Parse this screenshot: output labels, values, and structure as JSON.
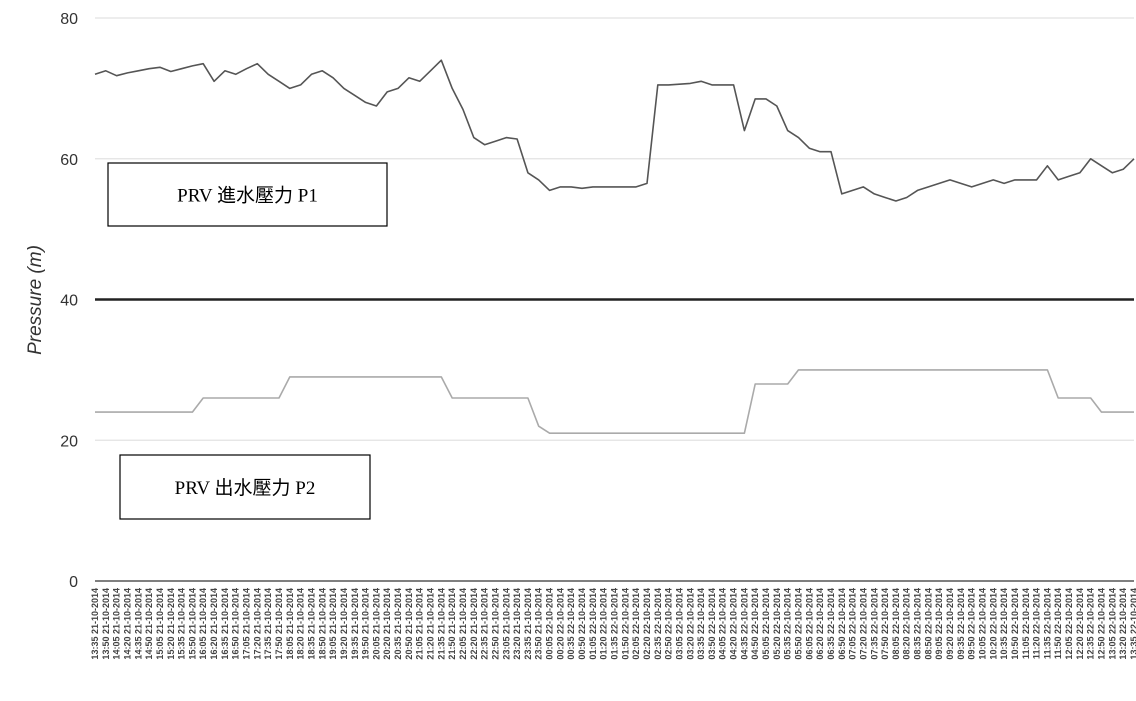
{
  "chart_data": {
    "type": "line",
    "title": "",
    "xlabel": "",
    "ylabel": "Pressure (m)",
    "ylim": [
      0,
      80
    ],
    "yticks": [
      0,
      20,
      40,
      60,
      80
    ],
    "grid": true,
    "reference_line": 40,
    "x": [
      "13:35 21-10-2014",
      "13:50 21-10-2014",
      "14:05 21-10-2014",
      "14:20 21-10-2014",
      "14:35 21-10-2014",
      "14:50 21-10-2014",
      "15:05 21-10-2014",
      "15:20 21-10-2014",
      "15:35 21-10-2014",
      "15:50 21-10-2014",
      "16:05 21-10-2014",
      "16:20 21-10-2014",
      "16:35 21-10-2014",
      "16:50 21-10-2014",
      "17:05 21-10-2014",
      "17:20 21-10-2014",
      "17:35 21-10-2014",
      "17:50 21-10-2014",
      "18:05 21-10-2014",
      "18:20 21-10-2014",
      "18:35 21-10-2014",
      "18:50 21-10-2014",
      "19:05 21-10-2014",
      "19:20 21-10-2014",
      "19:35 21-10-2014",
      "19:50 21-10-2014",
      "20:05 21-10-2014",
      "20:20 21-10-2014",
      "20:35 21-10-2014",
      "20:50 21-10-2014",
      "21:05 21-10-2014",
      "21:20 21-10-2014",
      "21:35 21-10-2014",
      "21:50 21-10-2014",
      "22:05 21-10-2014",
      "22:20 21-10-2014",
      "22:35 21-10-2014",
      "22:50 21-10-2014",
      "23:05 21-10-2014",
      "23:20 21-10-2014",
      "23:35 21-10-2014",
      "23:50 21-10-2014",
      "00:05 22-10-2014",
      "00:20 22-10-2014",
      "00:35 22-10-2014",
      "00:50 22-10-2014",
      "01:05 22-10-2014",
      "01:20 22-10-2014",
      "01:35 22-10-2014",
      "01:50 22-10-2014",
      "02:05 22-10-2014",
      "02:20 22-10-2014",
      "02:35 22-10-2014",
      "02:50 22-10-2014",
      "03:05 22-10-2014",
      "03:20 22-10-2014",
      "03:35 22-10-2014",
      "03:50 22-10-2014",
      "04:05 22-10-2014",
      "04:20 22-10-2014",
      "04:35 22-10-2014",
      "04:50 22-10-2014",
      "05:05 22-10-2014",
      "05:20 22-10-2014",
      "05:35 22-10-2014",
      "05:50 22-10-2014",
      "06:05 22-10-2014",
      "06:20 22-10-2014",
      "06:35 22-10-2014",
      "06:50 22-10-2014",
      "07:05 22-10-2014",
      "07:20 22-10-2014",
      "07:35 22-10-2014",
      "07:50 22-10-2014",
      "08:05 22-10-2014",
      "08:20 22-10-2014",
      "08:35 22-10-2014",
      "08:50 22-10-2014",
      "09:05 22-10-2014",
      "09:20 22-10-2014",
      "09:35 22-10-2014",
      "09:50 22-10-2014",
      "10:05 22-10-2014",
      "10:20 22-10-2014",
      "10:35 22-10-2014",
      "10:50 22-10-2014",
      "11:05 22-10-2014",
      "11:20 22-10-2014",
      "11:35 22-10-2014",
      "11:50 22-10-2014",
      "12:05 22-10-2014",
      "12:20 22-10-2014",
      "12:35 22-10-2014",
      "12:50 22-10-2014",
      "13:05 22-10-2014",
      "13:20 22-10-2014",
      "13:35 22-10-2014"
    ],
    "series": [
      {
        "name": "P1",
        "color": "#555555",
        "values": [
          72,
          72.5,
          71.8,
          72.2,
          72.5,
          72.8,
          73,
          72.4,
          72.8,
          73.2,
          73.5,
          71,
          72.5,
          72,
          72.8,
          73.5,
          72,
          71,
          70,
          70.5,
          72,
          72.5,
          71.5,
          70,
          69,
          68,
          67.5,
          69.5,
          70,
          71.5,
          71,
          72.5,
          74,
          70,
          67,
          63,
          62,
          62.5,
          63,
          62.8,
          58,
          57,
          55.5,
          56,
          56,
          55.8,
          56,
          56,
          56,
          56,
          56,
          56.5,
          70.5,
          70.5,
          70.6,
          70.7,
          71,
          70.5,
          70.5,
          70.5,
          64,
          68.5,
          68.5,
          67.5,
          64,
          63,
          61.5,
          61,
          61,
          55,
          55.5,
          56,
          55,
          54.5,
          54,
          54.5,
          55.5,
          56,
          56.5,
          57,
          56.5,
          56,
          56.5,
          57,
          56.5,
          57,
          57,
          57,
          59,
          57,
          57.5,
          58,
          60,
          59,
          58,
          58.5,
          60
        ]
      },
      {
        "name": "P2",
        "color": "#aaaaaa",
        "values": [
          24,
          24,
          24,
          24,
          24,
          24,
          24,
          24,
          24,
          24,
          26,
          26,
          26,
          26,
          26,
          26,
          26,
          26,
          29,
          29,
          29,
          29,
          29,
          29,
          29,
          29,
          29,
          29,
          29,
          29,
          29,
          29,
          29,
          26,
          26,
          26,
          26,
          26,
          26,
          26,
          26,
          22,
          21,
          21,
          21,
          21,
          21,
          21,
          21,
          21,
          21,
          21,
          21,
          21,
          21,
          21,
          21,
          21,
          21,
          21,
          21,
          28,
          28,
          28,
          28,
          30,
          30,
          30,
          30,
          30,
          30,
          30,
          30,
          30,
          30,
          30,
          30,
          30,
          30,
          30,
          30,
          30,
          30,
          30,
          30,
          30,
          30,
          30,
          30,
          26,
          26,
          26,
          26,
          24,
          24,
          24,
          24
        ]
      }
    ],
    "annotations": [
      {
        "text": "PRV 進水壓力  P1",
        "series": "P1"
      },
      {
        "text": "PRV 出水壓力  P2",
        "series": "P2"
      }
    ]
  }
}
